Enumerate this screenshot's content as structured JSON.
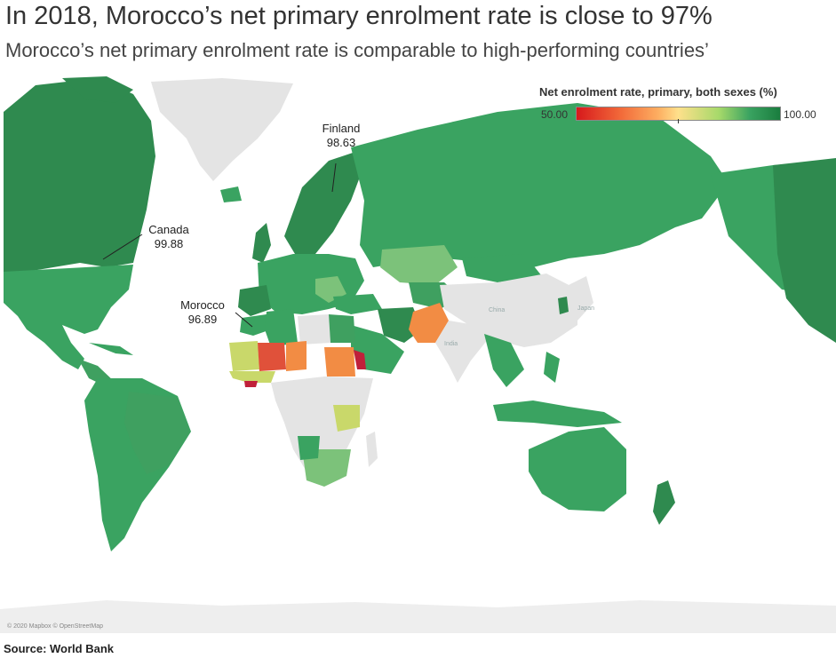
{
  "title": "In 2018, Morocco’s net primary enrolment rate is close to 97%",
  "subtitle": "Morocco’s net primary enrolment rate is comparable to high-performing countries’",
  "legend": {
    "title": "Net enrolment rate, primary, both sexes (%)",
    "min_label": "50.00",
    "max_label": "100.00",
    "min_value": 50,
    "max_value": 100,
    "colors": [
      "#d7191c",
      "#f26b3a",
      "#fdae61",
      "#fee08b",
      "#a6d96a",
      "#3aa361",
      "#1a7d3e"
    ]
  },
  "annotations": [
    {
      "country": "Finland",
      "value": "98.63"
    },
    {
      "country": "Canada",
      "value": "99.88"
    },
    {
      "country": "Morocco",
      "value": "96.89"
    }
  ],
  "map_labels": {
    "china": "China",
    "japan": "Japan",
    "india": "India"
  },
  "attribution": "© 2020 Mapbox © OpenStreetMap",
  "source": "Source: World Bank",
  "colors": {
    "no_data": "#e4e4e4",
    "dark_green": "#2f8a4f",
    "green": "#3fa060",
    "light_green": "#7cc27a",
    "yellow_green": "#c9d86a",
    "orange": "#f28c44",
    "red": "#e0513a",
    "crimson": "#c0203a"
  }
}
